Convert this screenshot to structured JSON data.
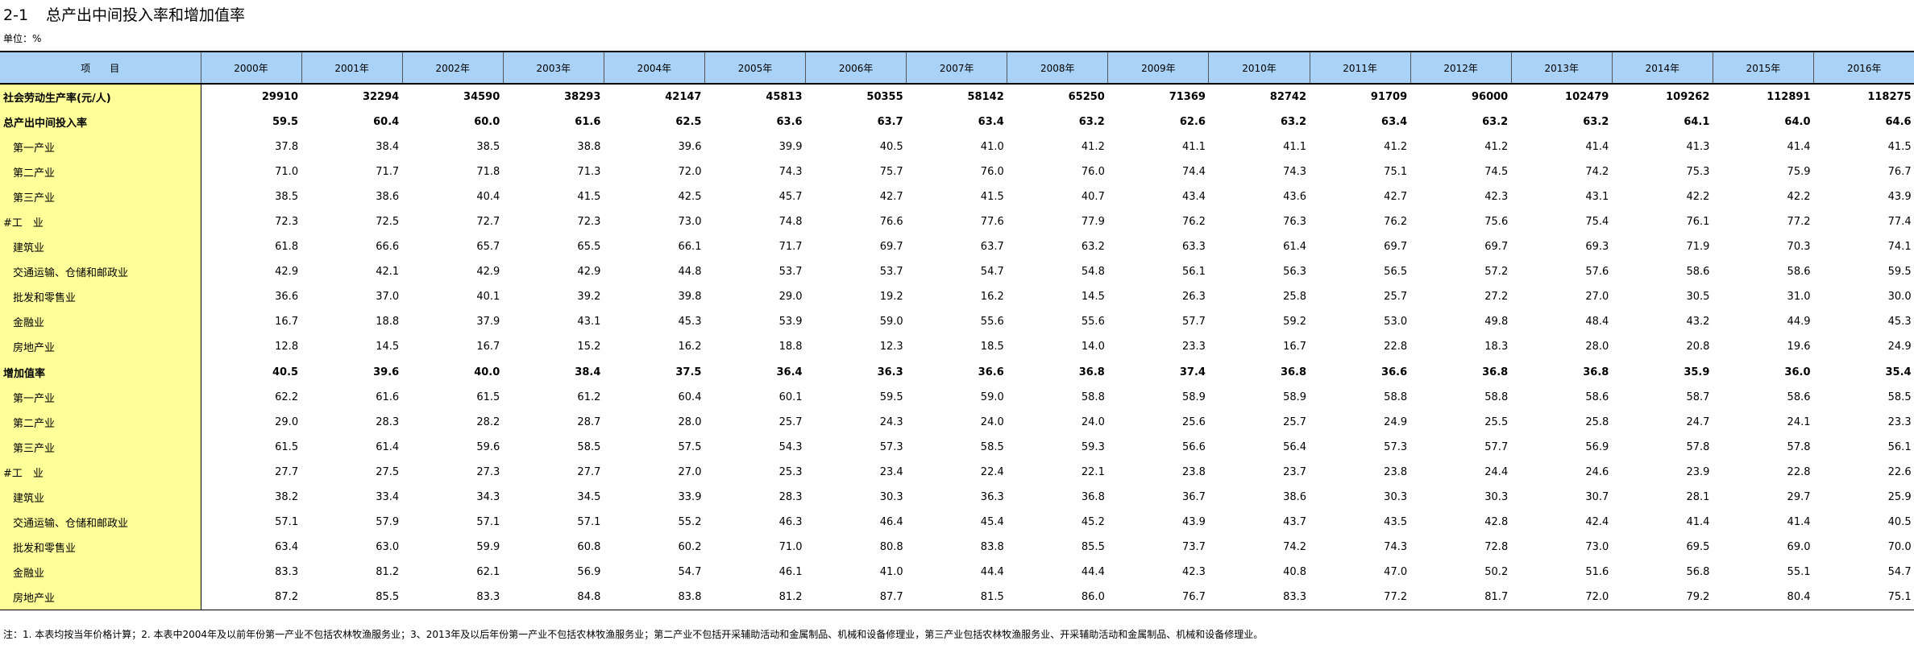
{
  "title": {
    "number": "2-1",
    "text": "总产出中间投入率和增加值率"
  },
  "unit": "单位：%",
  "header": {
    "item_label": "项　　目",
    "years": [
      "2000年",
      "2001年",
      "2002年",
      "2003年",
      "2004年",
      "2005年",
      "2006年",
      "2007年",
      "2008年",
      "2009年",
      "2010年",
      "2011年",
      "2012年",
      "2013年",
      "2014年",
      "2015年",
      "2016年"
    ]
  },
  "rows": [
    {
      "label": "社会劳动生产率(元/人)",
      "bold": true,
      "indent": false,
      "values": [
        "29910",
        "32294",
        "34590",
        "38293",
        "42147",
        "45813",
        "50355",
        "58142",
        "65250",
        "71369",
        "82742",
        "91709",
        "96000",
        "102479",
        "109262",
        "112891",
        "118275"
      ]
    },
    {
      "label": "总产出中间投入率",
      "bold": true,
      "indent": false,
      "values": [
        "59.5",
        "60.4",
        "60.0",
        "61.6",
        "62.5",
        "63.6",
        "63.7",
        "63.4",
        "63.2",
        "62.6",
        "63.2",
        "63.4",
        "63.2",
        "63.2",
        "64.1",
        "64.0",
        "64.6"
      ]
    },
    {
      "label": "第一产业",
      "bold": false,
      "indent": true,
      "values": [
        "37.8",
        "38.4",
        "38.5",
        "38.8",
        "39.6",
        "39.9",
        "40.5",
        "41.0",
        "41.2",
        "41.1",
        "41.1",
        "41.2",
        "41.2",
        "41.4",
        "41.3",
        "41.4",
        "41.5"
      ]
    },
    {
      "label": "第二产业",
      "bold": false,
      "indent": true,
      "values": [
        "71.0",
        "71.7",
        "71.8",
        "71.3",
        "72.0",
        "74.3",
        "75.7",
        "76.0",
        "76.0",
        "74.4",
        "74.3",
        "75.1",
        "74.5",
        "74.2",
        "75.3",
        "75.9",
        "76.7"
      ]
    },
    {
      "label": "第三产业",
      "bold": false,
      "indent": true,
      "values": [
        "38.5",
        "38.6",
        "40.4",
        "41.5",
        "42.5",
        "45.7",
        "42.7",
        "41.5",
        "40.7",
        "43.4",
        "43.6",
        "42.7",
        "42.3",
        "43.1",
        "42.2",
        "42.2",
        "43.9"
      ]
    },
    {
      "label": "#工　业",
      "bold": false,
      "indent": false,
      "values": [
        "72.3",
        "72.5",
        "72.7",
        "72.3",
        "73.0",
        "74.8",
        "76.6",
        "77.6",
        "77.9",
        "76.2",
        "76.3",
        "76.2",
        "75.6",
        "75.4",
        "76.1",
        "77.2",
        "77.4"
      ]
    },
    {
      "label": "建筑业",
      "bold": false,
      "indent": true,
      "values": [
        "61.8",
        "66.6",
        "65.7",
        "65.5",
        "66.1",
        "71.7",
        "69.7",
        "63.7",
        "63.2",
        "63.3",
        "61.4",
        "69.7",
        "69.7",
        "69.3",
        "71.9",
        "70.3",
        "74.1"
      ]
    },
    {
      "label": "交通运输、仓储和邮政业",
      "bold": false,
      "indent": true,
      "values": [
        "42.9",
        "42.1",
        "42.9",
        "42.9",
        "44.8",
        "53.7",
        "53.7",
        "54.7",
        "54.8",
        "56.1",
        "56.3",
        "56.5",
        "57.2",
        "57.6",
        "58.6",
        "58.6",
        "59.5"
      ]
    },
    {
      "label": "批发和零售业",
      "bold": false,
      "indent": true,
      "values": [
        "36.6",
        "37.0",
        "40.1",
        "39.2",
        "39.8",
        "29.0",
        "19.2",
        "16.2",
        "14.5",
        "26.3",
        "25.8",
        "25.7",
        "27.2",
        "27.0",
        "30.5",
        "31.0",
        "30.0"
      ]
    },
    {
      "label": "金融业",
      "bold": false,
      "indent": true,
      "values": [
        "16.7",
        "18.8",
        "37.9",
        "43.1",
        "45.3",
        "53.9",
        "59.0",
        "55.6",
        "55.6",
        "57.7",
        "59.2",
        "53.0",
        "49.8",
        "48.4",
        "43.2",
        "44.9",
        "45.3"
      ]
    },
    {
      "label": "房地产业",
      "bold": false,
      "indent": true,
      "values": [
        "12.8",
        "14.5",
        "16.7",
        "15.2",
        "16.2",
        "18.8",
        "12.3",
        "18.5",
        "14.0",
        "23.3",
        "16.7",
        "22.8",
        "18.3",
        "28.0",
        "20.8",
        "19.6",
        "24.9"
      ]
    },
    {
      "label": "增加值率",
      "bold": true,
      "indent": false,
      "values": [
        "40.5",
        "39.6",
        "40.0",
        "38.4",
        "37.5",
        "36.4",
        "36.3",
        "36.6",
        "36.8",
        "37.4",
        "36.8",
        "36.6",
        "36.8",
        "36.8",
        "35.9",
        "36.0",
        "35.4"
      ]
    },
    {
      "label": "第一产业",
      "bold": false,
      "indent": true,
      "values": [
        "62.2",
        "61.6",
        "61.5",
        "61.2",
        "60.4",
        "60.1",
        "59.5",
        "59.0",
        "58.8",
        "58.9",
        "58.9",
        "58.8",
        "58.8",
        "58.6",
        "58.7",
        "58.6",
        "58.5"
      ]
    },
    {
      "label": "第二产业",
      "bold": false,
      "indent": true,
      "values": [
        "29.0",
        "28.3",
        "28.2",
        "28.7",
        "28.0",
        "25.7",
        "24.3",
        "24.0",
        "24.0",
        "25.6",
        "25.7",
        "24.9",
        "25.5",
        "25.8",
        "24.7",
        "24.1",
        "23.3"
      ]
    },
    {
      "label": "第三产业",
      "bold": false,
      "indent": true,
      "values": [
        "61.5",
        "61.4",
        "59.6",
        "58.5",
        "57.5",
        "54.3",
        "57.3",
        "58.5",
        "59.3",
        "56.6",
        "56.4",
        "57.3",
        "57.7",
        "56.9",
        "57.8",
        "57.8",
        "56.1"
      ]
    },
    {
      "label": "#工　业",
      "bold": false,
      "indent": false,
      "values": [
        "27.7",
        "27.5",
        "27.3",
        "27.7",
        "27.0",
        "25.3",
        "23.4",
        "22.4",
        "22.1",
        "23.8",
        "23.7",
        "23.8",
        "24.4",
        "24.6",
        "23.9",
        "22.8",
        "22.6"
      ]
    },
    {
      "label": "建筑业",
      "bold": false,
      "indent": true,
      "values": [
        "38.2",
        "33.4",
        "34.3",
        "34.5",
        "33.9",
        "28.3",
        "30.3",
        "36.3",
        "36.8",
        "36.7",
        "38.6",
        "30.3",
        "30.3",
        "30.7",
        "28.1",
        "29.7",
        "25.9"
      ]
    },
    {
      "label": "交通运输、仓储和邮政业",
      "bold": false,
      "indent": true,
      "values": [
        "57.1",
        "57.9",
        "57.1",
        "57.1",
        "55.2",
        "46.3",
        "46.4",
        "45.4",
        "45.2",
        "43.9",
        "43.7",
        "43.5",
        "42.8",
        "42.4",
        "41.4",
        "41.4",
        "40.5"
      ]
    },
    {
      "label": "批发和零售业",
      "bold": false,
      "indent": true,
      "values": [
        "63.4",
        "63.0",
        "59.9",
        "60.8",
        "60.2",
        "71.0",
        "80.8",
        "83.8",
        "85.5",
        "73.7",
        "74.2",
        "74.3",
        "72.8",
        "73.0",
        "69.5",
        "69.0",
        "70.0"
      ]
    },
    {
      "label": "金融业",
      "bold": false,
      "indent": true,
      "values": [
        "83.3",
        "81.2",
        "62.1",
        "56.9",
        "54.7",
        "46.1",
        "41.0",
        "44.4",
        "44.4",
        "42.3",
        "40.8",
        "47.0",
        "50.2",
        "51.6",
        "56.8",
        "55.1",
        "54.7"
      ]
    },
    {
      "label": "房地产业",
      "bold": false,
      "indent": true,
      "values": [
        "87.2",
        "85.5",
        "83.3",
        "84.8",
        "83.8",
        "81.2",
        "87.7",
        "81.5",
        "86.0",
        "76.7",
        "83.3",
        "77.2",
        "81.7",
        "72.0",
        "79.2",
        "80.4",
        "75.1"
      ]
    }
  ],
  "note": "注：1. 本表均按当年价格计算；2. 本表中2004年及以前年份第一产业不包括农林牧渔服务业；3、2013年及以后年份第一产业不包括农林牧渔服务业；第二产业不包括开采辅助活动和金属制品、机械和设备修理业，第三产业包括农林牧渔服务业、开采辅助活动和金属制品、机械和设备修理业。"
}
